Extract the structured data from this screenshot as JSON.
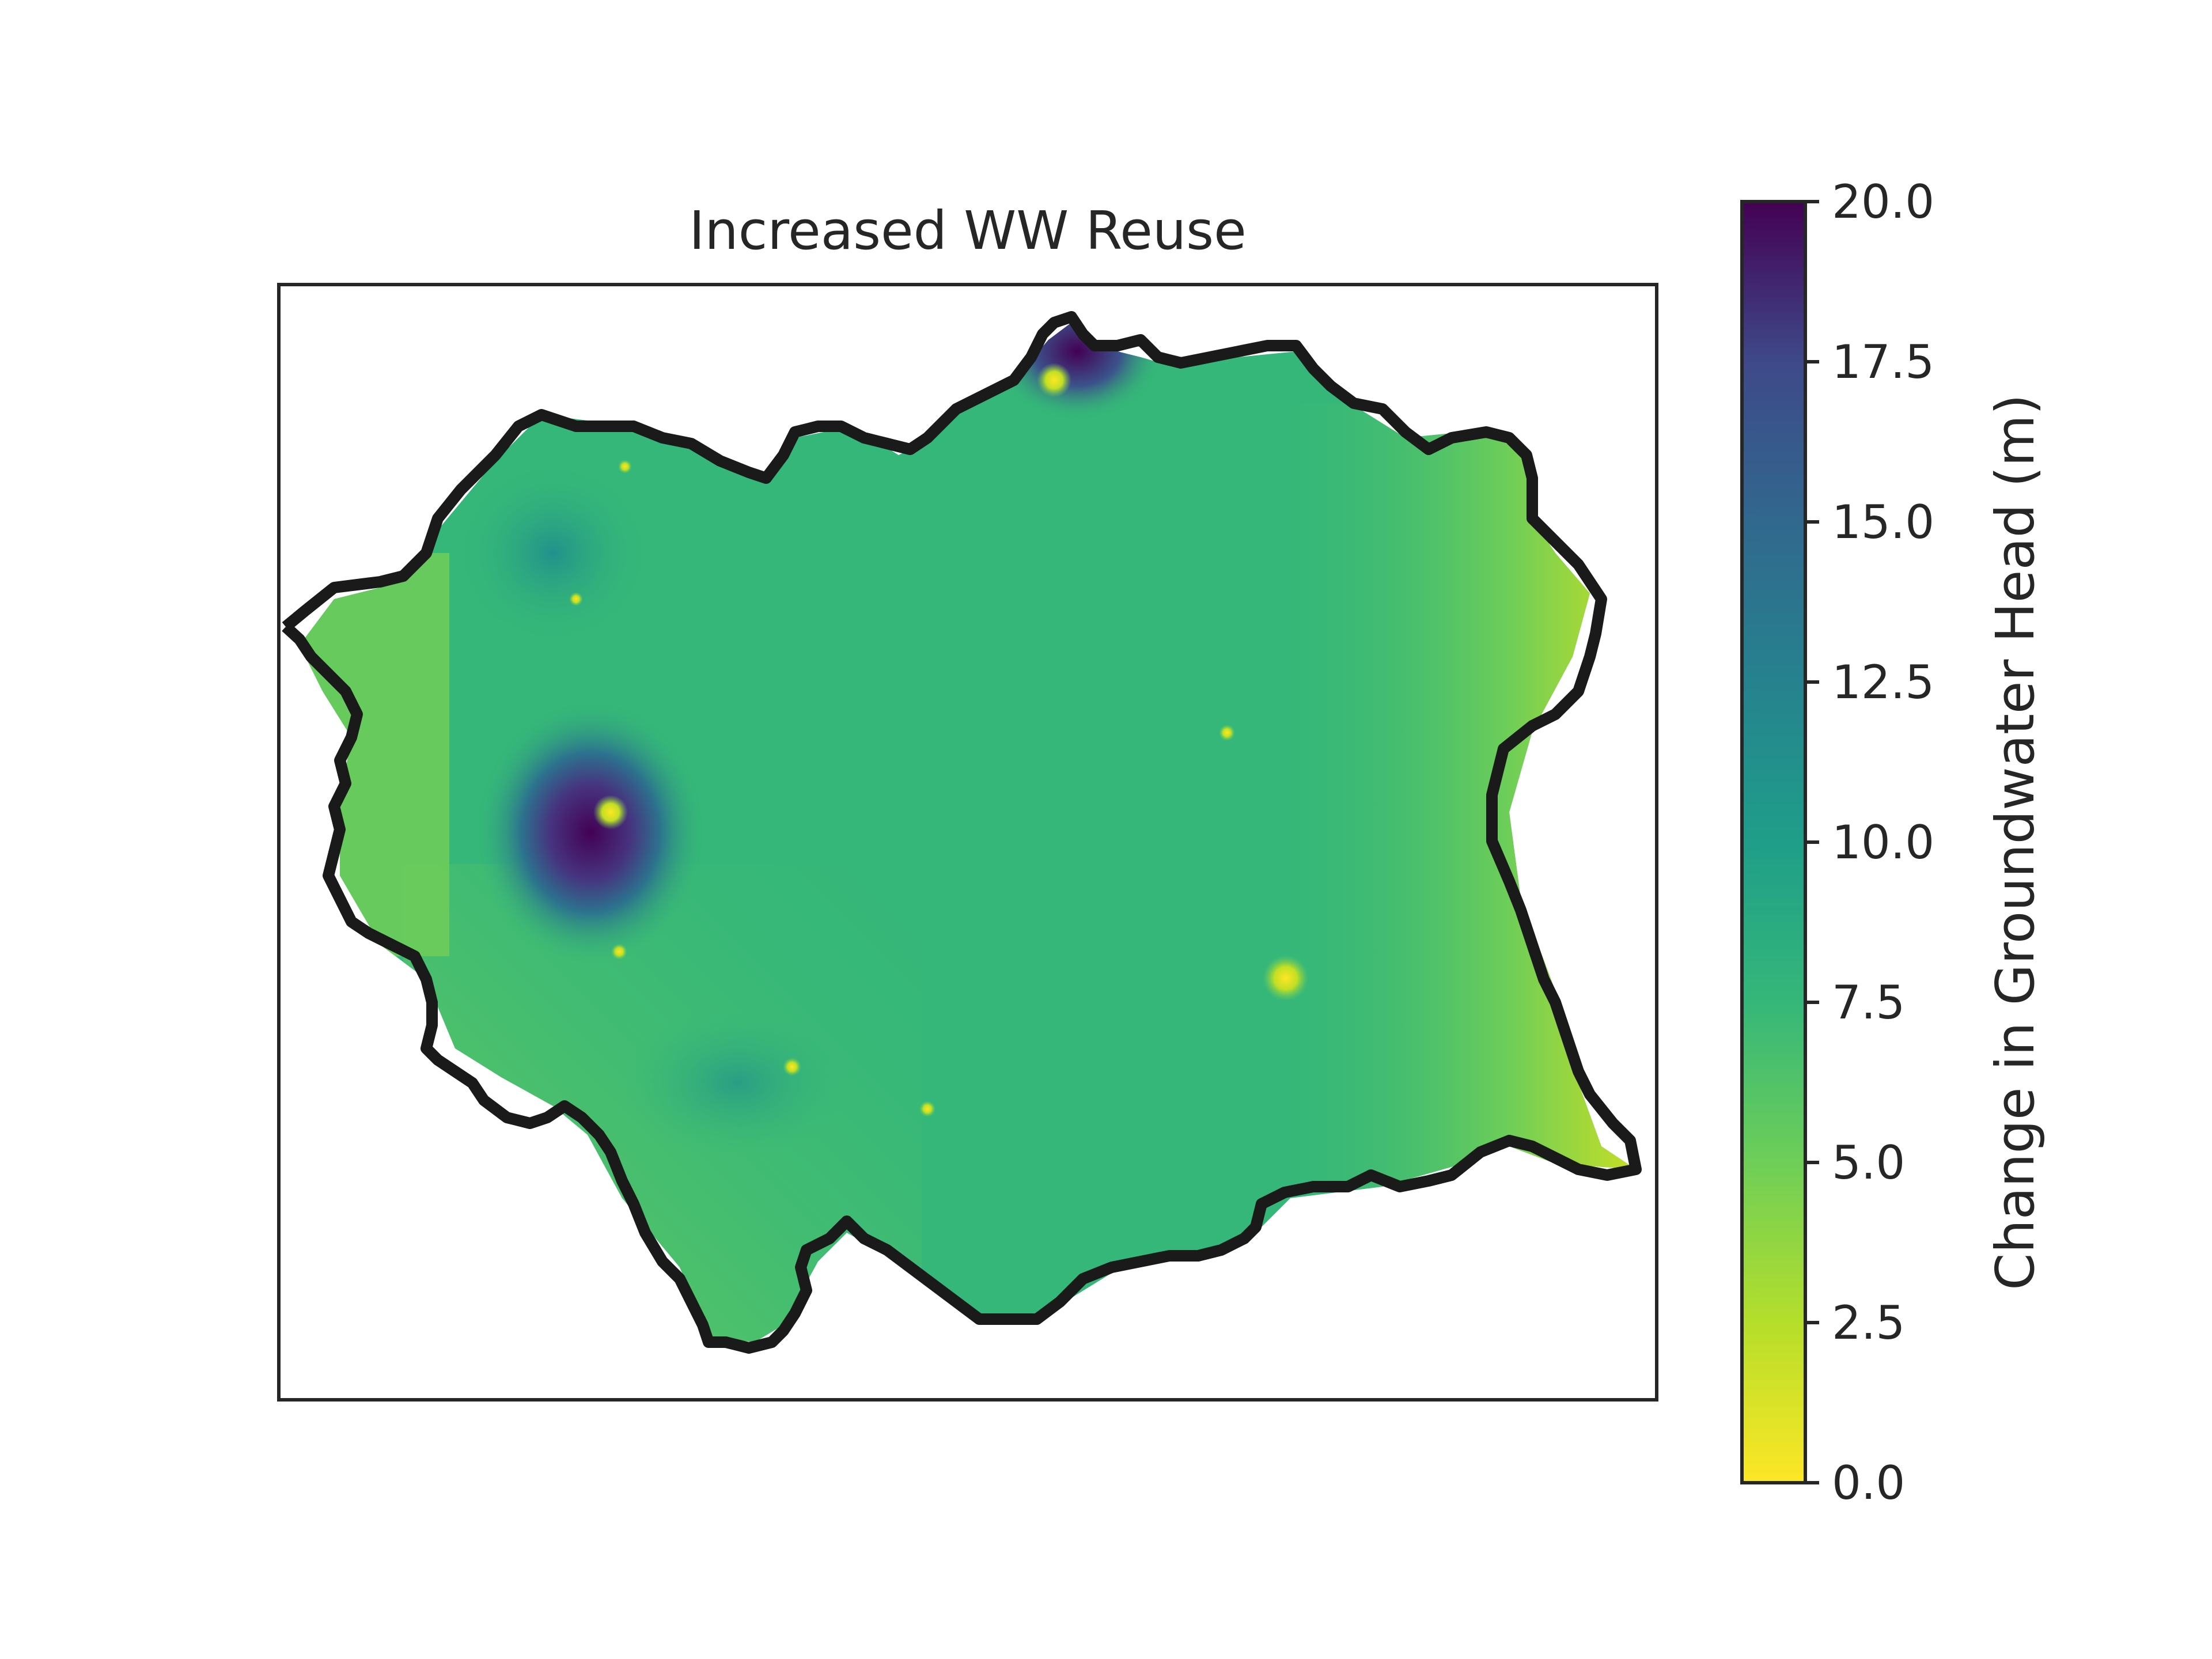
{
  "chart_data": {
    "type": "heatmap",
    "title": "Increased WW Reuse",
    "xlabel": "",
    "ylabel": "",
    "x_ticks_shown": false,
    "y_ticks_shown": false,
    "colormap": "viridis_r",
    "colorbar": {
      "label": "Change in Groundwater Head (m)",
      "range": [
        0.0,
        20.0
      ],
      "ticks": [
        "0.0",
        "2.5",
        "5.0",
        "7.5",
        "10.0",
        "12.5",
        "15.0",
        "17.5",
        "20.0"
      ],
      "color_low": "#fde725",
      "color_high": "#440154"
    },
    "field_summary": {
      "background_value": 6.5,
      "margin_values": [
        2.5,
        4.5
      ],
      "hotspots": [
        {
          "location": "west",
          "value": 20.0
        },
        {
          "location": "north",
          "value": 20.0
        }
      ],
      "low_spots_value": 0.0
    },
    "boundary_color": "#1a1a1a",
    "grid": false,
    "legend": "none"
  }
}
